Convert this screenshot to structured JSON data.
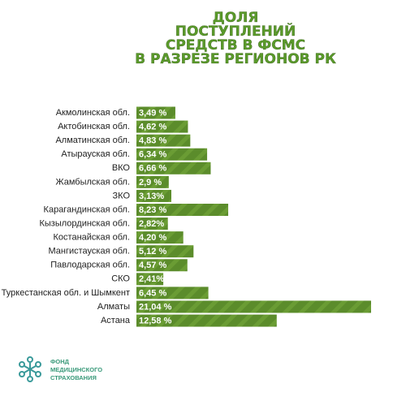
{
  "chart_data": {
    "type": "bar",
    "orientation": "horizontal",
    "title": [
      "ДОЛЯ",
      "ПОСТУПЛЕНИЙ",
      "СРЕДСТВ В ФСМС",
      "В РАЗРЕЗЕ РЕГИОНОВ РК"
    ],
    "categories": [
      "Акмолинская обл.",
      "Актобинская обл.",
      "Алматинская обл.",
      "Атырауская обл.",
      "ВКО",
      "Жамбылская обл.",
      "ЗКО",
      "Карагандинская обл.",
      "Кызылординская обл.",
      "Костанайская обл.",
      "Мангистауская обл.",
      "Павлодарская обл.",
      "СКО",
      "Туркестанская обл. и Шымкент",
      "Алматы",
      "Астана"
    ],
    "values": [
      3.49,
      4.62,
      4.83,
      6.34,
      6.66,
      2.9,
      3.13,
      8.23,
      2.82,
      4.2,
      5.12,
      4.57,
      2.41,
      6.45,
      21.04,
      12.58
    ],
    "value_labels": [
      "3,49 %",
      "4,62 %",
      "4,83 %",
      "6,34 %",
      "6,66 %",
      "2,9 %",
      "3,13%",
      "8,23 %",
      "2,82%",
      "4,20 %",
      "5,12 %",
      "4,57 %",
      "2,41%",
      "6,45 %",
      "21,04 %",
      "12,58 %"
    ],
    "color": "#5b8c2b",
    "logo_text": [
      "ФОНД",
      "МЕДИЦИНСКОГО",
      "СТРАХОВАНИЯ"
    ]
  }
}
